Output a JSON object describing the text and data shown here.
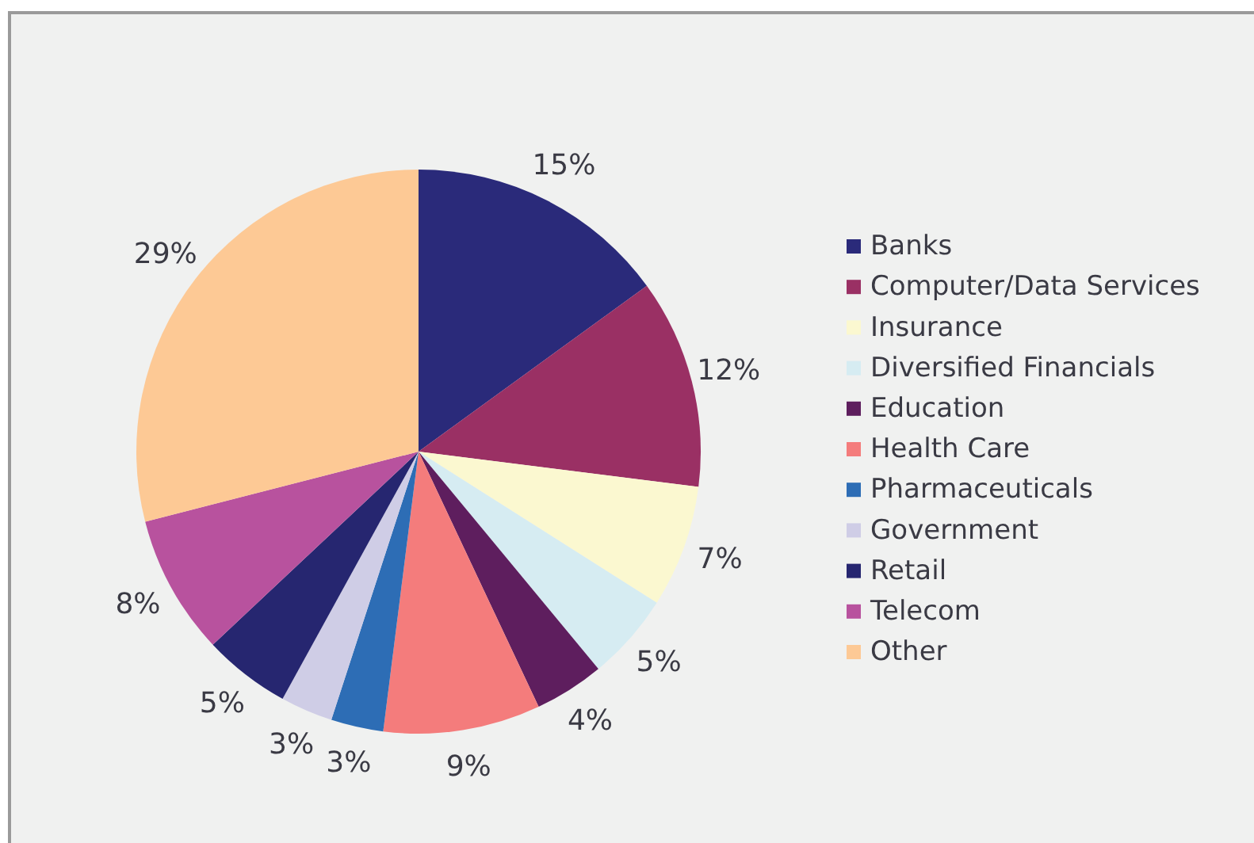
{
  "chart_data": {
    "type": "pie",
    "categories": [
      "Banks",
      "Computer/Data Services",
      "Insurance",
      "Diversified Financials",
      "Education",
      "Health Care",
      "Pharmaceuticals",
      "Government",
      "Retail",
      "Telecom",
      "Other"
    ],
    "values": [
      15,
      12,
      7,
      5,
      4,
      9,
      3,
      3,
      5,
      8,
      29
    ],
    "value_labels": [
      "15%",
      "12%",
      "7%",
      "5%",
      "4%",
      "9%",
      "3%",
      "3%",
      "5%",
      "8%",
      "29%"
    ],
    "colors": [
      "#2a2a7a",
      "#9a3064",
      "#fbf8d0",
      "#d6ecf2",
      "#5e1e5e",
      "#f47c7c",
      "#2d6db5",
      "#cfcde6",
      "#262670",
      "#b8529e",
      "#fdc995"
    ],
    "legend": "right"
  }
}
